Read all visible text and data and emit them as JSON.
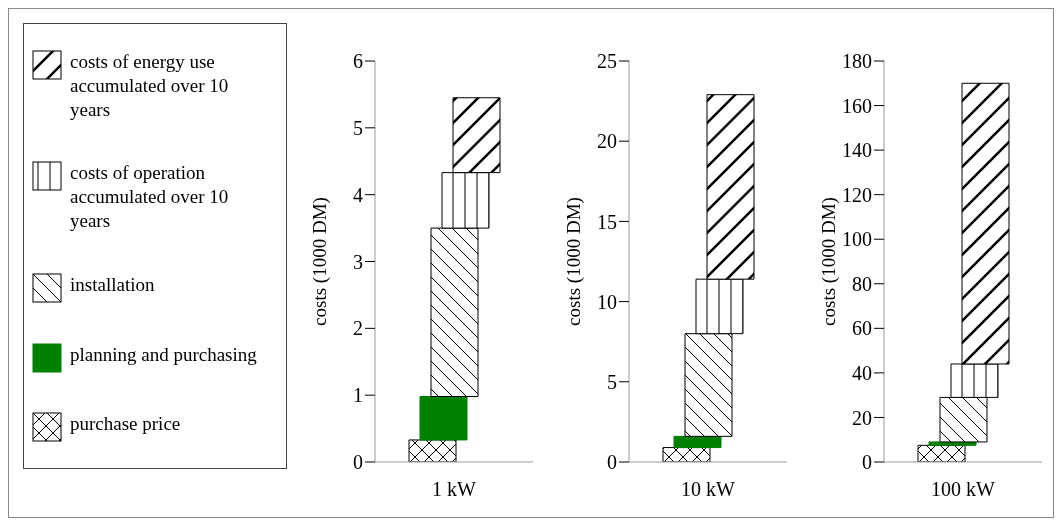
{
  "chart_data": [
    {
      "type": "bar",
      "categories": [
        "1 kW"
      ],
      "ylabel": "costs (1000 DM)",
      "ylim": [
        0,
        6
      ],
      "yticks": [
        0,
        1,
        2,
        3,
        4,
        5,
        6
      ],
      "legend": "left",
      "series": [
        {
          "name": "purchase price",
          "color": "#000000",
          "values": [
            0.33
          ],
          "base": [
            0
          ]
        },
        {
          "name": "planning and purchasing",
          "color": "#008000",
          "values": [
            0.65
          ],
          "base": [
            0.33
          ]
        },
        {
          "name": "installation",
          "color": "#000000",
          "values": [
            2.52
          ],
          "base": [
            0.98
          ]
        },
        {
          "name": "costs of operation accumulated over 10 years",
          "color": "#000000",
          "values": [
            0.83
          ],
          "base": [
            3.5
          ]
        },
        {
          "name": "costs of energy use accumulated over 10 years",
          "color": "#000000",
          "values": [
            1.12
          ],
          "base": [
            4.33
          ]
        }
      ]
    },
    {
      "type": "bar",
      "categories": [
        "10 kW"
      ],
      "ylabel": "costs (1000 DM)",
      "ylim": [
        0,
        25
      ],
      "yticks": [
        0,
        5,
        10,
        15,
        20,
        25
      ],
      "series": [
        {
          "color": "#000000",
          "values": [
            0.9
          ],
          "base": [
            0
          ]
        },
        {
          "color": "#008000",
          "values": [
            0.7
          ],
          "base": [
            0.9
          ]
        },
        {
          "color": "#000000",
          "values": [
            6.4
          ],
          "base": [
            1.6
          ]
        },
        {
          "color": "#000000",
          "values": [
            3.4
          ],
          "base": [
            8
          ]
        },
        {
          "color": "#000000",
          "values": [
            11.5
          ],
          "base": [
            11.4
          ]
        }
      ]
    },
    {
      "type": "bar",
      "categories": [
        "100 kW"
      ],
      "ylabel": "costs (1000 DM)",
      "ylim": [
        0,
        180
      ],
      "yticks": [
        0,
        20,
        40,
        60,
        80,
        100,
        120,
        140,
        160,
        180
      ],
      "series": [
        {
          "color": "#000000",
          "values": [
            7.5
          ],
          "base": [
            0
          ]
        },
        {
          "color": "#008000",
          "values": [
            1.5
          ],
          "base": [
            7.5
          ]
        },
        {
          "color": "#000000",
          "values": [
            20
          ],
          "base": [
            9
          ]
        },
        {
          "color": "#000000",
          "values": [
            15
          ],
          "base": [
            29
          ]
        },
        {
          "color": "#000000",
          "values": [
            126
          ],
          "base": [
            44
          ]
        }
      ]
    }
  ]
}
